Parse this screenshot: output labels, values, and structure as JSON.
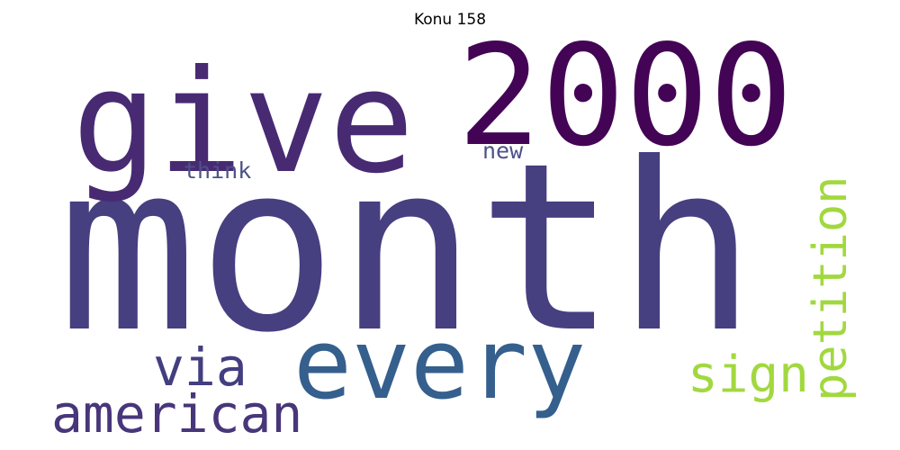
{
  "title": "Konu 158",
  "words": [
    {
      "text": "month",
      "color": "#463f80",
      "rotated": false
    },
    {
      "text": "give",
      "color": "#482a73",
      "rotated": false
    },
    {
      "text": "2000",
      "color": "#440455",
      "rotated": false
    },
    {
      "text": "every",
      "color": "#355f8d",
      "rotated": false
    },
    {
      "text": "american",
      "color": "#48367a",
      "rotated": false
    },
    {
      "text": "via",
      "color": "#433e80",
      "rotated": false
    },
    {
      "text": "sign",
      "color": "#a2d83f",
      "rotated": false
    },
    {
      "text": "petition",
      "color": "#a2d83f",
      "rotated": true
    },
    {
      "text": "think",
      "color": "#4c5189",
      "rotated": false
    },
    {
      "text": "new",
      "color": "#4c5189",
      "rotated": false
    }
  ]
}
